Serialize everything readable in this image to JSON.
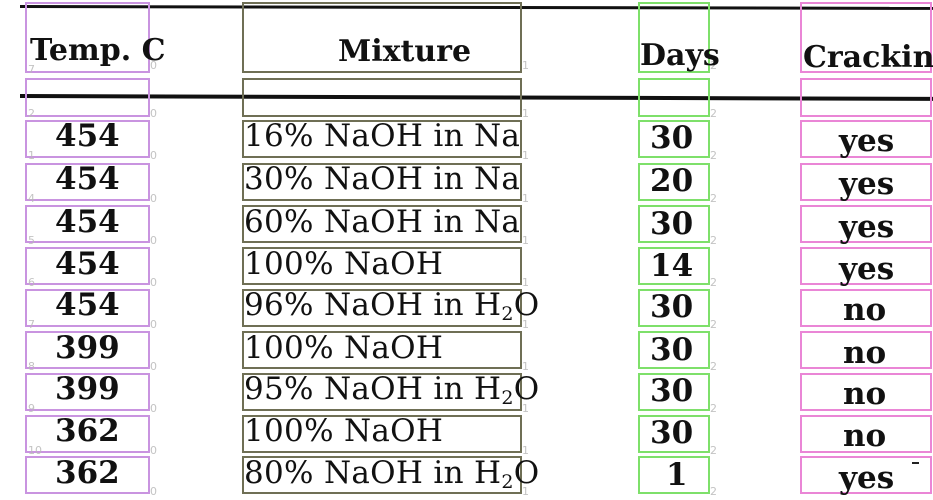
{
  "table": {
    "headers": [
      "Temp. C",
      "Mixture",
      "Days",
      "Cracking"
    ],
    "rows": [
      {
        "temp": "454",
        "mixture_pre": "16% NaOH in Na",
        "mixture_sub": "",
        "mixture_post": "",
        "days": "30",
        "cracking": "yes"
      },
      {
        "temp": "454",
        "mixture_pre": "30% NaOH in Na",
        "mixture_sub": "",
        "mixture_post": "",
        "days": "20",
        "cracking": "yes"
      },
      {
        "temp": "454",
        "mixture_pre": "60% NaOH in Na",
        "mixture_sub": "",
        "mixture_post": "",
        "days": "30",
        "cracking": "yes"
      },
      {
        "temp": "454",
        "mixture_pre": "100% NaOH",
        "mixture_sub": "",
        "mixture_post": "",
        "days": "14",
        "cracking": "yes"
      },
      {
        "temp": "454",
        "mixture_pre": "96% NaOH in H",
        "mixture_sub": "2",
        "mixture_post": "O",
        "days": "30",
        "cracking": "no"
      },
      {
        "temp": "399",
        "mixture_pre": "100% NaOH",
        "mixture_sub": "",
        "mixture_post": "",
        "days": "30",
        "cracking": "no"
      },
      {
        "temp": "399",
        "mixture_pre": "95% NaOH in H",
        "mixture_sub": "2",
        "mixture_post": "O",
        "days": "30",
        "cracking": "no"
      },
      {
        "temp": "362",
        "mixture_pre": "100% NaOH",
        "mixture_sub": "",
        "mixture_post": "",
        "days": "30",
        "cracking": "no"
      },
      {
        "temp": "362",
        "mixture_pre": "80% NaOH in H",
        "mixture_sub": "2",
        "mixture_post": "O",
        "days": "1",
        "cracking": "yes"
      }
    ]
  },
  "overlay": {
    "column_colors": [
      "#c994e0",
      "#6f6f55",
      "#7ee06a",
      "#ea86d6"
    ],
    "row_numbers": [
      "7",
      "2",
      "1",
      "4",
      "5",
      "6",
      "7",
      "8",
      "9",
      "10"
    ],
    "column_numbers": [
      "0",
      "1",
      "2"
    ]
  }
}
